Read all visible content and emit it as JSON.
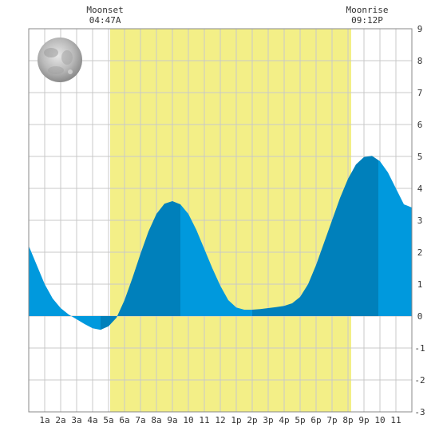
{
  "chart_data": {
    "type": "area",
    "title": "",
    "xlabel": "",
    "ylabel": "",
    "x_unit": "hours after midnight",
    "xlim": [
      0,
      24
    ],
    "ylim": [
      -3,
      9
    ],
    "grid": true,
    "x_tick_labels": [
      {
        "x": 1,
        "label": "1a"
      },
      {
        "x": 2,
        "label": "2a"
      },
      {
        "x": 3,
        "label": "3a"
      },
      {
        "x": 4,
        "label": "4a"
      },
      {
        "x": 5,
        "label": "5a"
      },
      {
        "x": 6,
        "label": "6a"
      },
      {
        "x": 7,
        "label": "7a"
      },
      {
        "x": 8,
        "label": "8a"
      },
      {
        "x": 9,
        "label": "9a"
      },
      {
        "x": 10,
        "label": "10"
      },
      {
        "x": 11,
        "label": "11"
      },
      {
        "x": 12,
        "label": "12"
      },
      {
        "x": 13,
        "label": "1p"
      },
      {
        "x": 14,
        "label": "2p"
      },
      {
        "x": 15,
        "label": "3p"
      },
      {
        "x": 16,
        "label": "4p"
      },
      {
        "x": 17,
        "label": "5p"
      },
      {
        "x": 18,
        "label": "6p"
      },
      {
        "x": 19,
        "label": "7p"
      },
      {
        "x": 20,
        "label": "8p"
      },
      {
        "x": 21,
        "label": "9p"
      },
      {
        "x": 22,
        "label": "10"
      },
      {
        "x": 23,
        "label": "11"
      }
    ],
    "y_tick_labels": [
      "-3",
      "-2",
      "-1",
      "0",
      "1",
      "2",
      "3",
      "4",
      "5",
      "6",
      "7",
      "8",
      "9"
    ],
    "daylight": {
      "start": 5.1,
      "end": 20.2
    },
    "series": [
      {
        "x": [
          0,
          0.5,
          1,
          1.5,
          2,
          2.5,
          3,
          3.5,
          4,
          4.5,
          5,
          5.5,
          6,
          6.5,
          7,
          7.5,
          8,
          8.5,
          9,
          9.5,
          10,
          10.5,
          11,
          11.5,
          12,
          12.5,
          13,
          13.5,
          14,
          14.5,
          15,
          15.5,
          16,
          16.5,
          17,
          17.5,
          18,
          18.5,
          19,
          19.5,
          20,
          20.5,
          21,
          21.5,
          22,
          22.5,
          23,
          23.5,
          24
        ],
        "y": [
          2.2,
          1.6,
          1.0,
          0.55,
          0.25,
          0.05,
          -0.1,
          -0.25,
          -0.38,
          -0.43,
          -0.32,
          -0.05,
          0.5,
          1.2,
          1.95,
          2.65,
          3.2,
          3.52,
          3.6,
          3.5,
          3.2,
          2.7,
          2.1,
          1.5,
          0.95,
          0.5,
          0.27,
          0.2,
          0.2,
          0.22,
          0.25,
          0.28,
          0.32,
          0.4,
          0.6,
          1.0,
          1.6,
          2.3,
          3.0,
          3.7,
          4.3,
          4.75,
          4.98,
          5.02,
          4.85,
          4.5,
          4.0,
          3.5,
          3.4
        ]
      }
    ],
    "extremes": [
      {
        "x": 4.5,
        "kind": "low"
      },
      {
        "x": 9.5,
        "kind": "high"
      },
      {
        "x": 14.0,
        "kind": "low"
      },
      {
        "x": 21.9,
        "kind": "high"
      }
    ],
    "annotations": [
      {
        "x": 4.78,
        "title": "Moonset",
        "time": "04:47A"
      },
      {
        "x": 21.2,
        "title": "Moonrise",
        "time": "09:12P"
      }
    ]
  },
  "colors": {
    "daylight": "#f3ef87",
    "tide_light": "#0099dd",
    "tide_dark": "#0080bb",
    "grid": "#c8c8c8",
    "border": "#888888"
  },
  "moon_icon": "full-moon-icon"
}
